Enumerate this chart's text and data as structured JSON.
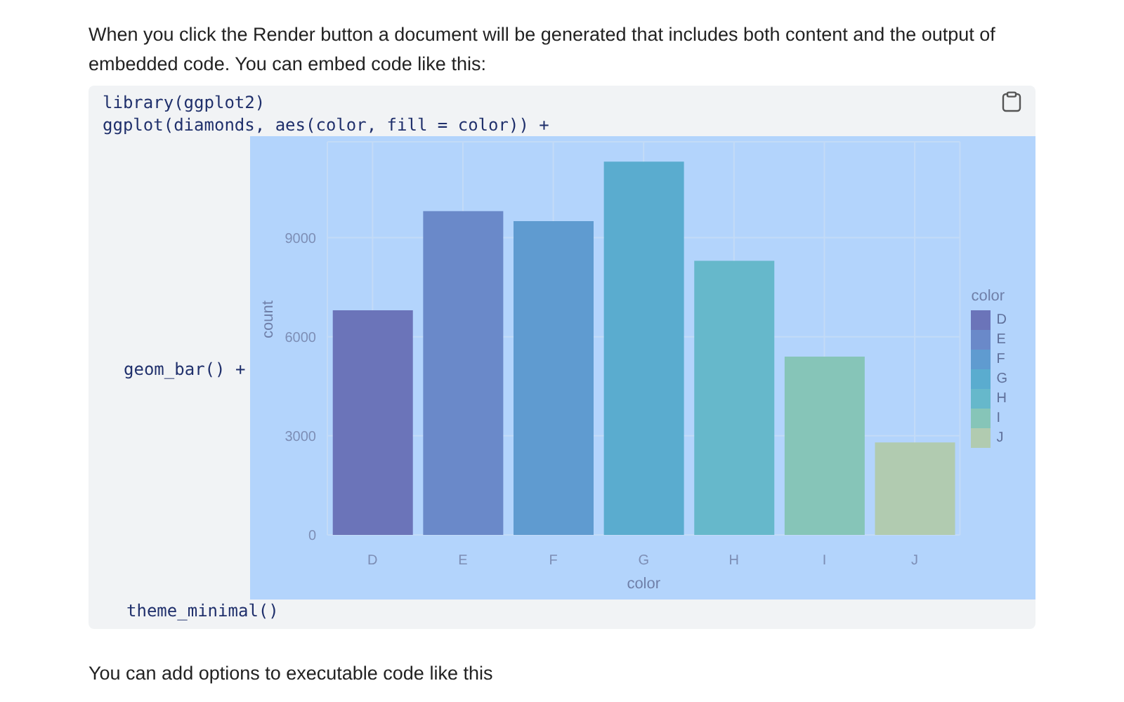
{
  "chart_data": {
    "type": "bar",
    "xlabel": "color",
    "ylabel": "count",
    "legend_title": "color",
    "stacked": true,
    "categories": [
      "D",
      "E",
      "F",
      "G",
      "H",
      "I",
      "J"
    ],
    "series": [
      {
        "name": "D",
        "color": "#6b74b9",
        "values": [
          6800,
          null,
          null,
          null,
          null,
          null,
          null
        ]
      },
      {
        "name": "E",
        "color": "#6a89c9",
        "values": [
          null,
          9800,
          null,
          null,
          null,
          null,
          null
        ]
      },
      {
        "name": "F",
        "color": "#5f9bd0",
        "values": [
          null,
          null,
          9500,
          null,
          null,
          null,
          null
        ]
      },
      {
        "name": "G",
        "color": "#5aaccf",
        "values": [
          null,
          null,
          null,
          11300,
          null,
          null,
          null
        ]
      },
      {
        "name": "H",
        "color": "#66b8cb",
        "values": [
          null,
          null,
          null,
          null,
          8300,
          null,
          null
        ]
      },
      {
        "name": "I",
        "color": "#86c5b8",
        "values": [
          null,
          null,
          null,
          null,
          null,
          5400,
          null
        ]
      },
      {
        "name": "J",
        "color": "#b1cbb0",
        "values": [
          null,
          null,
          null,
          null,
          null,
          null,
          2800
        ]
      }
    ],
    "ylim": [
      0,
      11900
    ],
    "yticks": [
      0,
      3000,
      6000,
      9000
    ],
    "grid": true,
    "legend": "right",
    "annotations": [
      "When you click the Render button a document will be generated that includes both content and the output of embedded code. You can embed code like this:",
      "library(ggplot2)",
      "ggplot(diamonds, aes(color, fill = color)) +",
      "geom_bar() +",
      "theme_minimal()",
      "You can add options to executable code like this"
    ]
  }
}
